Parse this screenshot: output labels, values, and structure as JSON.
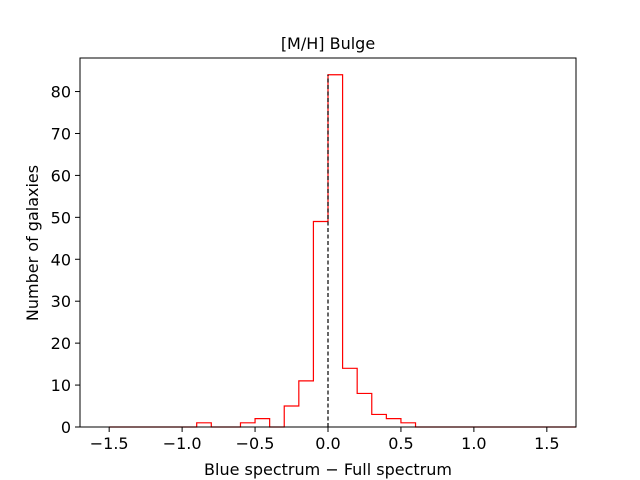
{
  "chart_data": {
    "type": "histogram",
    "title": "[M/H] Bulge",
    "xlabel": "Blue spectrum − Full spectrum",
    "ylabel": "Number of galaxies",
    "xlim": [
      -1.7,
      1.7
    ],
    "ylim": [
      0,
      88
    ],
    "xticks": [
      -1.5,
      -1.0,
      -0.5,
      0.0,
      0.5,
      1.0,
      1.5
    ],
    "xtick_labels": [
      "−1.5",
      "−1.0",
      "−0.5",
      "0.0",
      "0.5",
      "1.0",
      "1.5"
    ],
    "yticks": [
      0,
      10,
      20,
      30,
      40,
      50,
      60,
      70,
      80
    ],
    "ytick_labels": [
      "0",
      "10",
      "20",
      "30",
      "40",
      "50",
      "60",
      "70",
      "80"
    ],
    "bin_edges": [
      -1.5,
      -1.4,
      -1.3,
      -1.2,
      -1.1,
      -1.0,
      -0.9,
      -0.8,
      -0.7,
      -0.6,
      -0.5,
      -0.4,
      -0.3,
      -0.2,
      -0.1,
      0.0,
      0.1,
      0.2,
      0.3,
      0.4,
      0.5,
      0.6,
      0.7,
      0.8,
      0.9,
      1.0,
      1.1,
      1.2,
      1.3,
      1.4,
      1.5,
      1.6,
      1.7
    ],
    "counts": [
      0,
      0,
      0,
      0,
      0,
      0,
      1,
      0,
      0,
      1,
      2,
      0,
      5,
      11,
      49,
      84,
      14,
      8,
      3,
      2,
      1,
      0,
      0,
      0,
      0,
      0,
      0,
      0,
      0,
      0,
      0,
      0
    ],
    "reference_line": {
      "x": 0.0,
      "style": "dashed",
      "color": "#000000"
    },
    "colors": {
      "histogram": "#ff0000",
      "axes": "#000000"
    },
    "grid": false
  }
}
